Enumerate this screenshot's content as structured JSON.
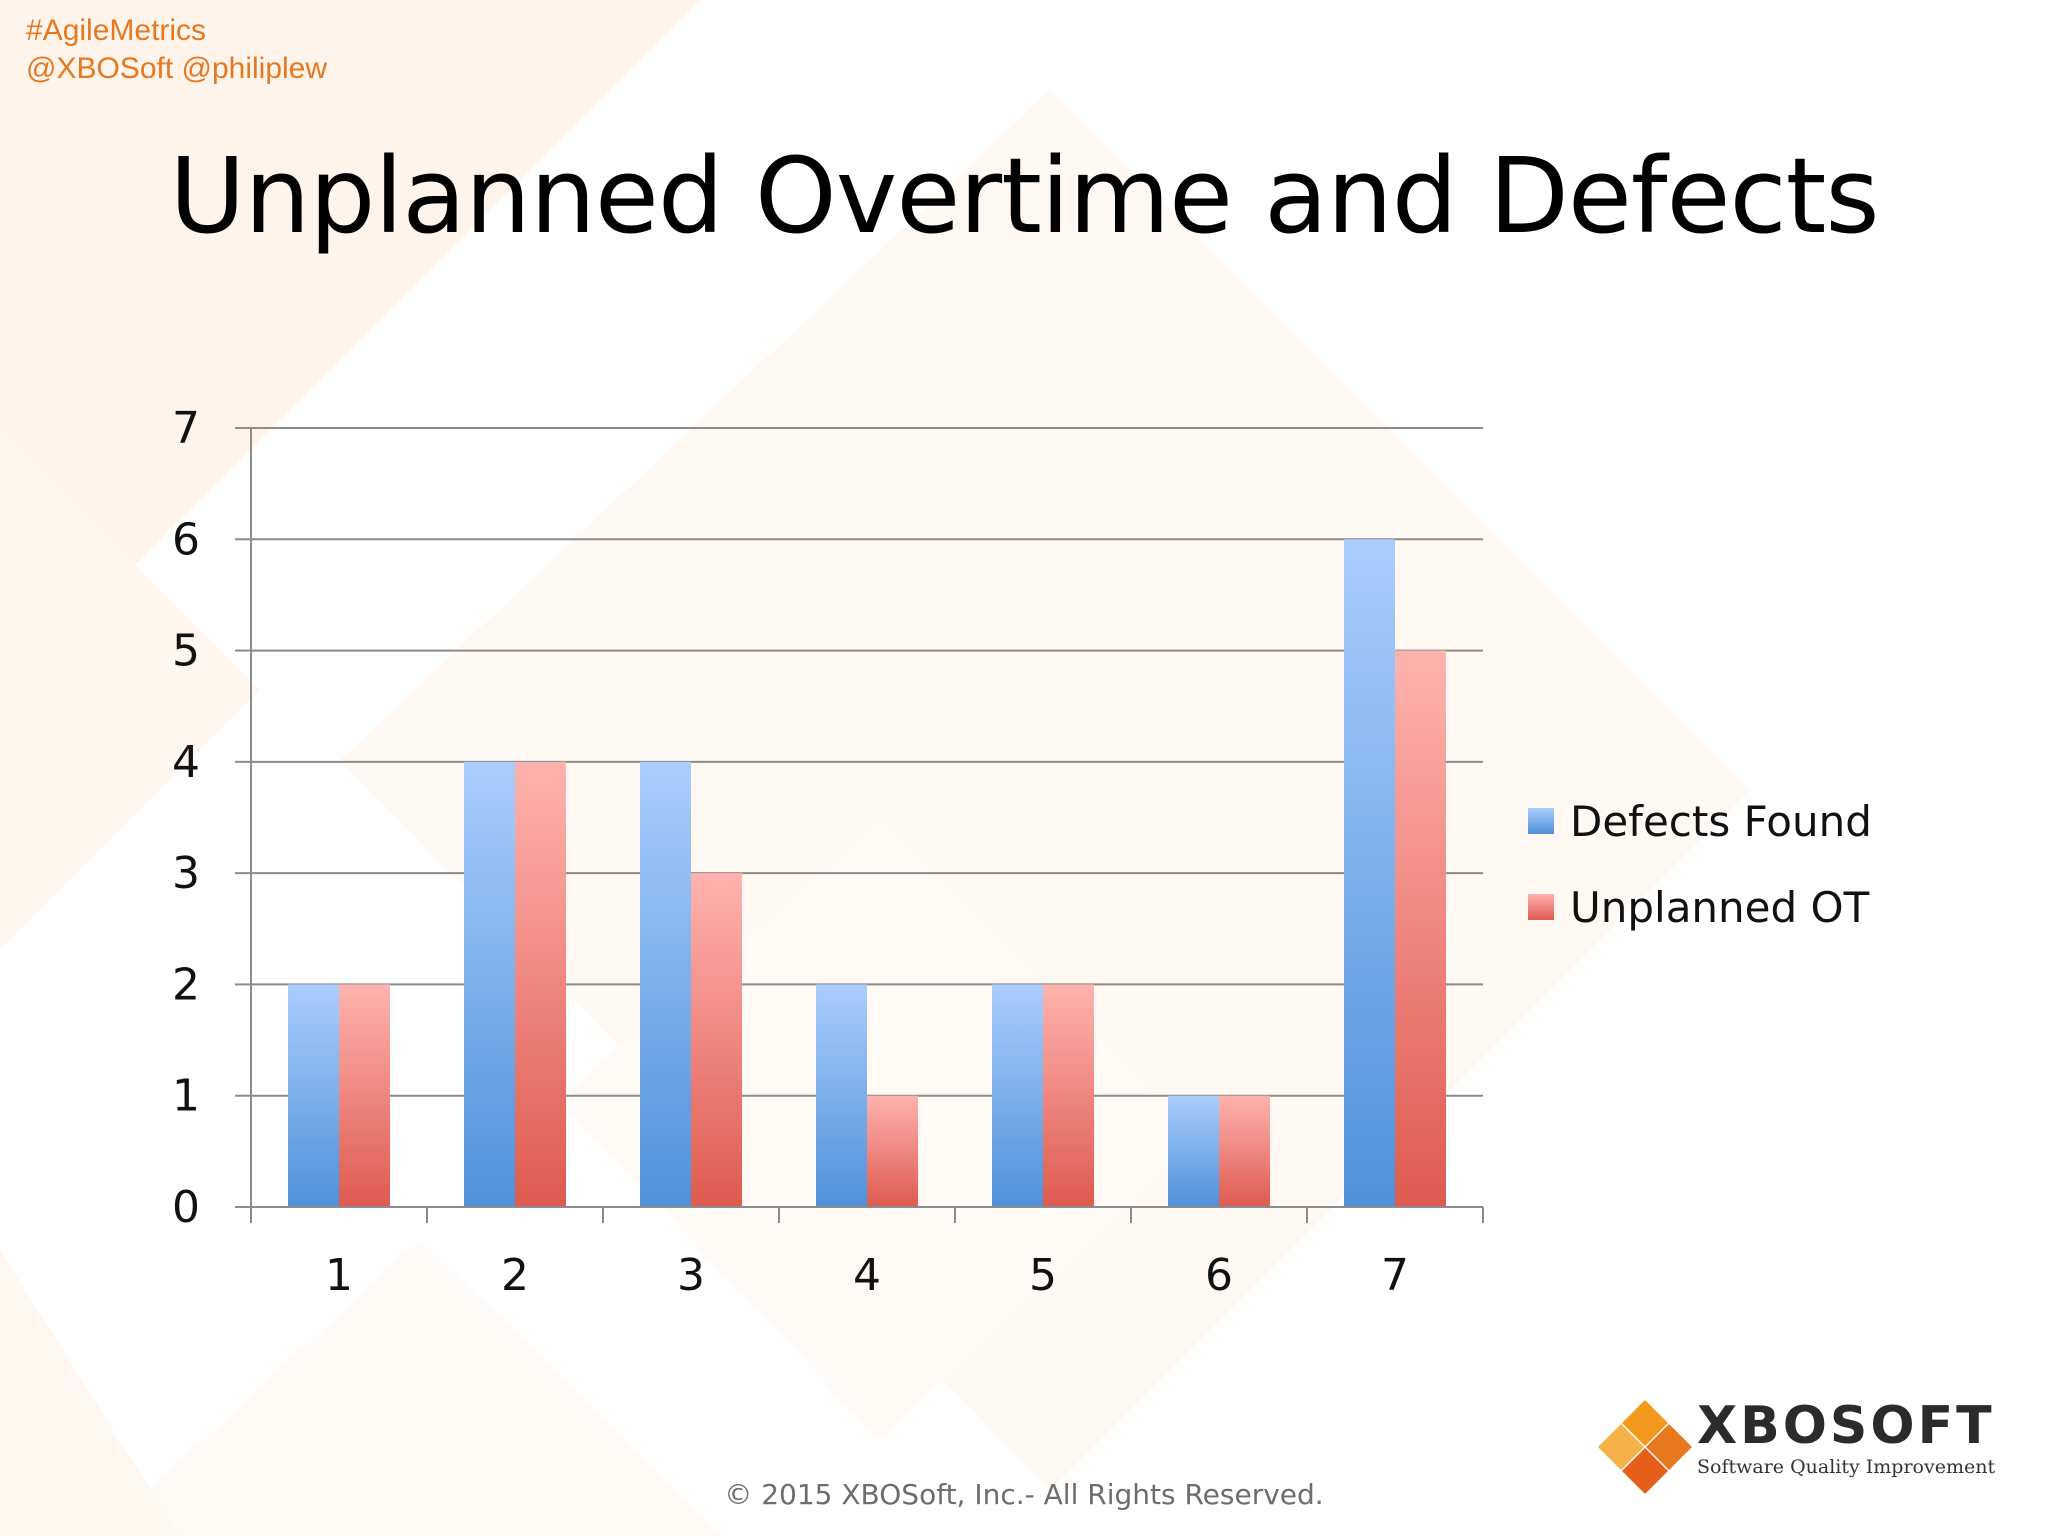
{
  "header": {
    "hashtag_line1": "#AgileMetrics",
    "hashtag_line2": "@XBOSoft @philiplew"
  },
  "slide": {
    "title": "Unplanned Overtime and Defects"
  },
  "chart_data": {
    "type": "bar",
    "categories": [
      "1",
      "2",
      "3",
      "4",
      "5",
      "6",
      "7"
    ],
    "series": [
      {
        "name": "Defects Found",
        "values": [
          2,
          4,
          4,
          2,
          2,
          1,
          6
        ],
        "color": "#4f91d9"
      },
      {
        "name": "Unplanned OT",
        "values": [
          2,
          4,
          3,
          1,
          2,
          1,
          5
        ],
        "color": "#de5a50"
      }
    ],
    "yticks": [
      "0",
      "1",
      "2",
      "3",
      "4",
      "5",
      "6",
      "7"
    ],
    "ylim": [
      0,
      7
    ],
    "grid": true,
    "legend_position": "right",
    "xlabel": "",
    "ylabel": ""
  },
  "footer": {
    "copyright": "© 2015 XBOSoft, Inc.- All Rights Reserved."
  },
  "logo": {
    "name": "XBOSOFT",
    "tagline": "Software Quality Improvement",
    "colors": [
      "#f39a1e",
      "#e8781e",
      "#f6b24a",
      "#e65f1a"
    ]
  }
}
